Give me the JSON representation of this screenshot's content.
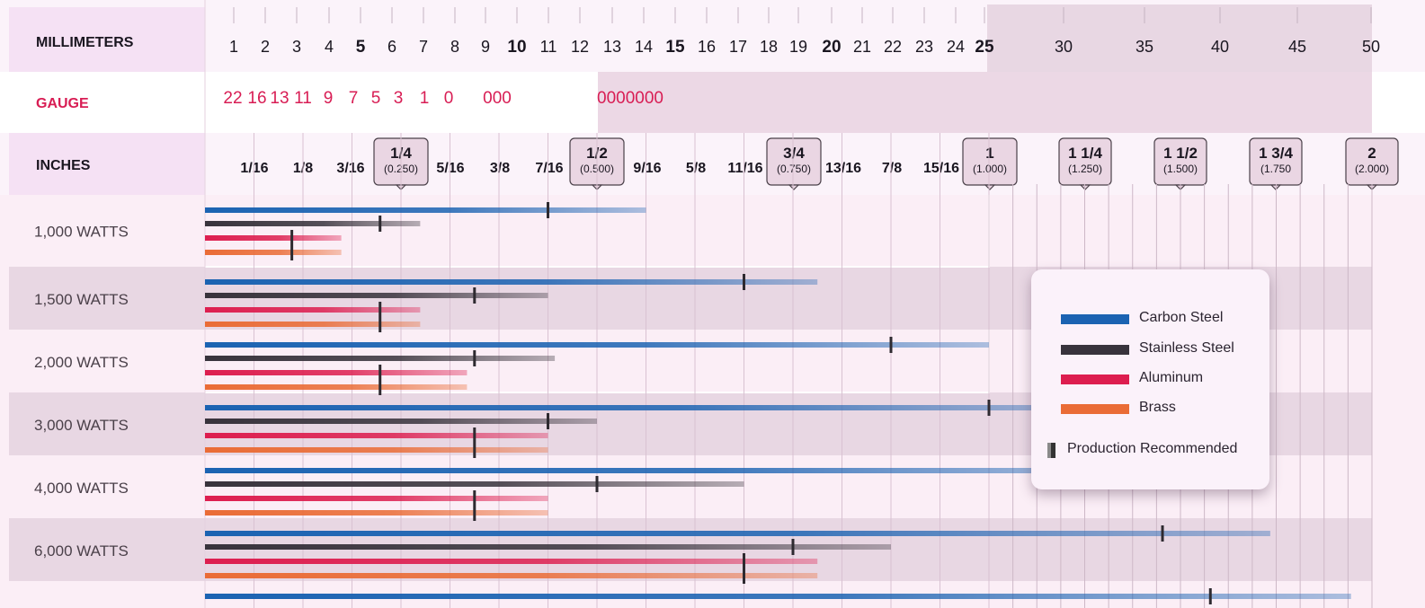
{
  "chart_data": {
    "type": "bar",
    "title": "",
    "header_rows": {
      "millimeters": {
        "label": "MILLIMETERS",
        "ticks": [
          "1",
          "2",
          "3",
          "4",
          "5",
          "6",
          "7",
          "8",
          "9",
          "10",
          "11",
          "12",
          "13",
          "14",
          "15",
          "16",
          "17",
          "18",
          "19",
          "20",
          "21",
          "22",
          "23",
          "24",
          "25",
          "30",
          "35",
          "40",
          "45",
          "50"
        ]
      },
      "gauge": {
        "label": "GAUGE",
        "ticks": [
          "22",
          "16",
          "13",
          "11",
          "9",
          "7",
          "5",
          "3",
          "1",
          "0",
          "000",
          "0000000"
        ]
      },
      "inches": {
        "label": "INCHES",
        "ticks": [
          "1/16",
          "1/8",
          "3/16",
          "5/16",
          "3/8",
          "7/16",
          "9/16",
          "5/8",
          "11/16",
          "13/16",
          "7/8",
          "15/16"
        ],
        "callouts": [
          {
            "label": "1/4",
            "sub": "(0.250)"
          },
          {
            "label": "1/2",
            "sub": "(0.500)"
          },
          {
            "label": "3/4",
            "sub": "(0.750)"
          },
          {
            "label": "1",
            "sub": "(1.000)"
          },
          {
            "label": "1 1/4",
            "sub": "(1.250)"
          },
          {
            "label": "1 1/2",
            "sub": "(1.500)"
          },
          {
            "label": "1 3/4",
            "sub": "(1.750"
          },
          {
            "label": "2",
            "sub": "(2.000)"
          }
        ]
      }
    },
    "x_unit": "inches",
    "xlim": [
      0,
      2
    ],
    "series": [
      {
        "name": "Carbon Steel",
        "color": "#1b63b2"
      },
      {
        "name": "Stainless Steel",
        "color": "#38333c"
      },
      {
        "name": "Aluminum",
        "color": "#dd1e4f"
      },
      {
        "name": "Brass",
        "color": "#ea6c36"
      }
    ],
    "categories": [
      "1,000 WATTS",
      "1,500 WATTS",
      "2,000 WATTS",
      "3,000 WATTS",
      "4,000 WATTS",
      "6,000 WATTS",
      ""
    ],
    "max_thickness_in": [
      [
        0.5625,
        0.2745,
        0.1739,
        0.1739
      ],
      [
        0.7812,
        0.4375,
        0.2745,
        0.2745
      ],
      [
        1.0,
        0.4462,
        0.3342,
        0.3342
      ],
      [
        1.2148,
        0.5,
        0.4375,
        0.4375
      ],
      [
        1.3594,
        0.6875,
        0.4375,
        0.4375
      ],
      [
        1.7344,
        0.875,
        0.7812,
        0.7812
      ],
      [
        1.9453,
        null,
        null,
        null
      ]
    ],
    "production_recommended_in": [
      [
        0.4375,
        0.2233,
        0.1108,
        0.1108
      ],
      [
        0.6875,
        0.3438,
        0.2233,
        0.2233
      ],
      [
        0.875,
        0.3438,
        0.2233,
        0.2233
      ],
      [
        1.0,
        0.4375,
        0.3438,
        0.3438
      ],
      [
        1.1875,
        0.5,
        0.3438,
        0.3438
      ],
      [
        1.4531,
        0.75,
        0.6875,
        0.6875
      ],
      [
        1.5781,
        null,
        null,
        null
      ]
    ],
    "legend": {
      "position": "right",
      "marker_label": "Production Recommended"
    }
  }
}
